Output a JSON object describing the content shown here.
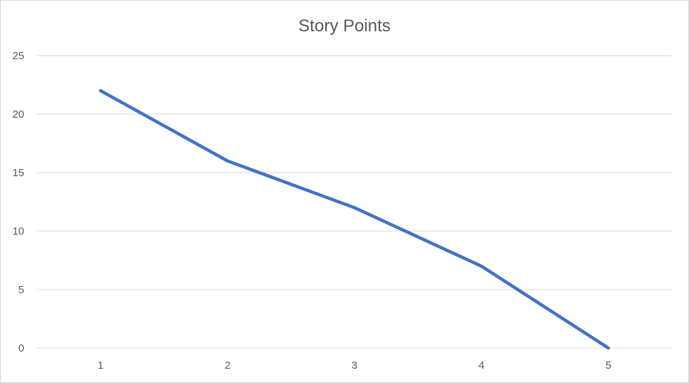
{
  "chart_data": {
    "type": "line",
    "title": "Story Points",
    "xlabel": "",
    "ylabel": "",
    "categories": [
      "1",
      "2",
      "3",
      "4",
      "5"
    ],
    "series": [
      {
        "name": "Story Points",
        "values": [
          22,
          16,
          12,
          7,
          0
        ],
        "color": "#4472C4"
      }
    ],
    "ylim": [
      0,
      25
    ],
    "yticks": [
      "0",
      "5",
      "10",
      "15",
      "20",
      "25"
    ],
    "grid": true,
    "gridColor": "#d9d9d9",
    "legend": "none"
  }
}
